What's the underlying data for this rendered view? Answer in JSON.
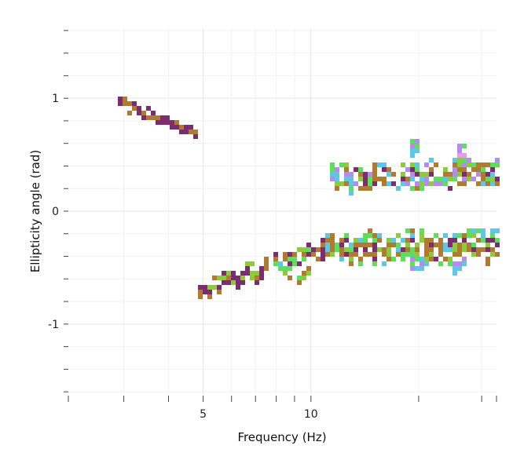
{
  "chart_data": {
    "type": "heatmap",
    "title": "",
    "xlabel": "Frequency (Hz)",
    "ylabel": "Ellipticity angle (rad)",
    "x_scale": "log",
    "xlim": [
      2.1,
      33
    ],
    "ylim": [
      -1.62,
      1.62
    ],
    "x_ticks": [
      {
        "value": 5,
        "label": "5"
      },
      {
        "value": 10,
        "label": "10"
      }
    ],
    "y_ticks": [
      {
        "value": 1,
        "label": "1"
      },
      {
        "value": 0,
        "label": "0"
      },
      {
        "value": -1,
        "label": "-1"
      }
    ],
    "cell_height": 0.045,
    "colors": {
      "purple": "#7b2d6f",
      "brown": "#b07a30",
      "lime": "#8ccc3c",
      "green": "#5ce05c",
      "cyan": "#5cc8e6",
      "violet": "#b48cf0",
      "pink": "#e89ae8"
    },
    "traces": [
      {
        "name": "low-branch-upper",
        "x_start": 2.9,
        "x_end": 4.75,
        "y_start": 0.96,
        "y_end": 0.68,
        "thickness": 0.07,
        "spread": 0.02,
        "palette": [
          "purple",
          "purple",
          "brown"
        ]
      },
      {
        "name": "main-lower-branch-1",
        "x_start": 4.85,
        "x_end": 7.5,
        "y_start": -0.72,
        "y_end": -0.5,
        "thickness": 0.15,
        "spread": 0.06,
        "palette": [
          "purple",
          "brown",
          "lime",
          "purple"
        ]
      },
      {
        "name": "main-lower-branch-2",
        "x_start": 7.5,
        "x_end": 10.5,
        "y_start": -0.45,
        "y_end": -0.33,
        "thickness": 0.12,
        "spread": 0.03,
        "palette": [
          "purple",
          "brown",
          "lime",
          "green",
          "purple"
        ]
      },
      {
        "name": "main-lower-branch-3",
        "x_start": 10.5,
        "x_end": 33,
        "y_start": -0.33,
        "y_end": -0.3,
        "thickness": 0.24,
        "spread": 0.06,
        "palette": [
          "brown",
          "lime",
          "green",
          "purple",
          "brown",
          "cyan"
        ]
      },
      {
        "name": "side-blob-lower",
        "x_start": 8.2,
        "x_end": 9.6,
        "y_start": -0.54,
        "y_end": -0.58,
        "thickness": 0.1,
        "spread": 0.05,
        "palette": [
          "lime",
          "green",
          "brown",
          "cyan"
        ]
      },
      {
        "name": "main-upper-branch",
        "x_start": 11.3,
        "x_end": 33,
        "y_start": 0.3,
        "y_end": 0.33,
        "thickness": 0.22,
        "spread": 0.05,
        "palette": [
          "brown",
          "lime",
          "green",
          "purple",
          "brown",
          "cyan",
          "violet"
        ]
      },
      {
        "name": "upper-peak-1",
        "x_start": 19.0,
        "x_end": 19.8,
        "y_start": 0.55,
        "y_end": 0.6,
        "thickness": 0.2,
        "spread": 0.03,
        "palette": [
          "violet",
          "cyan",
          "green"
        ]
      },
      {
        "name": "upper-peak-2",
        "x_start": 25.5,
        "x_end": 26.5,
        "y_start": 0.55,
        "y_end": 0.5,
        "thickness": 0.16,
        "spread": 0.03,
        "palette": [
          "violet",
          "pink",
          "green"
        ]
      },
      {
        "name": "lower-dip-1",
        "x_start": 19.0,
        "x_end": 20.5,
        "y_start": -0.46,
        "y_end": -0.48,
        "thickness": 0.12,
        "spread": 0.03,
        "palette": [
          "cyan",
          "violet",
          "green"
        ]
      },
      {
        "name": "lower-dip-2",
        "x_start": 24.5,
        "x_end": 26.5,
        "y_start": -0.5,
        "y_end": -0.48,
        "thickness": 0.1,
        "spread": 0.03,
        "palette": [
          "violet",
          "pink",
          "cyan"
        ]
      }
    ]
  }
}
